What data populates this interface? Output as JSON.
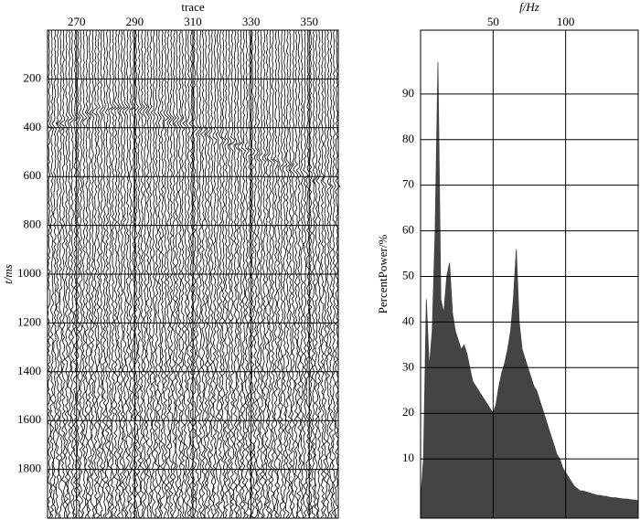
{
  "chart_data": [
    {
      "type": "seismic",
      "xlabel": "trace",
      "ylabel": "t/ms",
      "xlim": [
        260,
        360
      ],
      "xticks": [
        270,
        290,
        310,
        330,
        350
      ],
      "ylim": [
        0,
        2000
      ],
      "yticks": [
        200,
        400,
        600,
        800,
        1000,
        1200,
        1400,
        1600,
        1800
      ],
      "grid": true,
      "color": "#000000"
    },
    {
      "type": "area",
      "xlabel": "f/Hz",
      "ylabel": "PercentPower/%",
      "xlim": [
        0,
        150
      ],
      "xticks": [
        50,
        100
      ],
      "ylim": [
        -3,
        104
      ],
      "yticks": [
        10,
        20,
        30,
        40,
        50,
        60,
        70,
        80,
        90
      ],
      "grid": true,
      "color": "#444444",
      "x": [
        0,
        2,
        4,
        6,
        8,
        10,
        12,
        14,
        16,
        18,
        20,
        22,
        24,
        26,
        28,
        30,
        32,
        34,
        36,
        38,
        40,
        42,
        44,
        46,
        48,
        50,
        52,
        54,
        56,
        58,
        60,
        62,
        64,
        66,
        68,
        70,
        72,
        74,
        76,
        78,
        80,
        82,
        84,
        86,
        88,
        90,
        92,
        94,
        96,
        98,
        100,
        102,
        104,
        106,
        108,
        110,
        112,
        114,
        116,
        118,
        120,
        122,
        124,
        126,
        128,
        130,
        132,
        134,
        136,
        138,
        140,
        142,
        144,
        146,
        148,
        150
      ],
      "values": [
        1,
        10,
        45,
        30,
        38,
        60,
        97,
        45,
        42,
        50,
        53,
        42,
        38,
        36,
        34,
        35,
        33,
        30,
        27,
        26,
        25,
        24,
        23,
        22,
        21,
        20,
        22,
        26,
        29,
        31,
        34,
        38,
        45,
        56,
        40,
        34,
        32,
        30,
        28,
        26,
        25,
        23,
        21,
        19,
        17,
        15,
        13,
        11,
        10,
        8,
        7,
        6,
        5,
        4,
        3.5,
        3,
        3,
        2.8,
        2.6,
        2.4,
        2.2,
        2,
        2,
        1.8,
        1.8,
        1.6,
        1.5,
        1.5,
        1.4,
        1.3,
        1.2,
        1.2,
        1.1,
        1,
        1,
        0.8
      ]
    }
  ]
}
